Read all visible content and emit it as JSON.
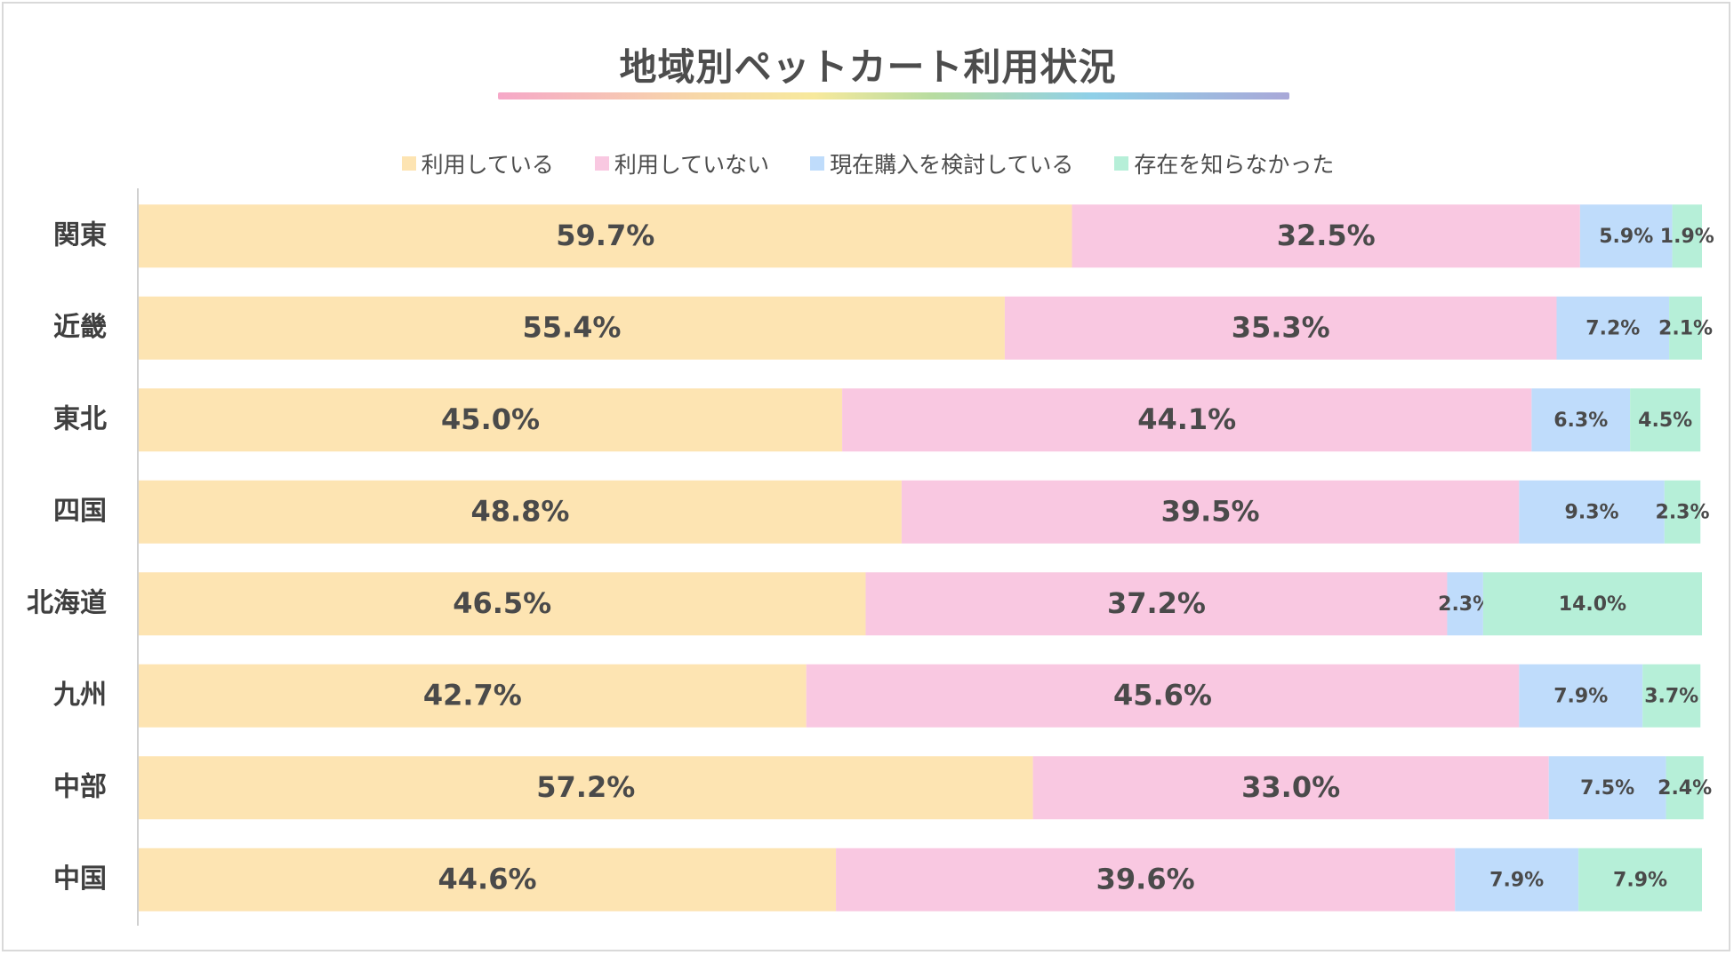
{
  "chart_data": {
    "type": "bar",
    "orientation": "horizontal",
    "stacked": true,
    "title": "地域別ペットカート利用状況",
    "categories": [
      "関東",
      "近畿",
      "東北",
      "四国",
      "北海道",
      "九州",
      "中部",
      "中国"
    ],
    "series": [
      {
        "name": "利用している",
        "color": "#fde4b2",
        "values": [
          59.7,
          55.4,
          45.0,
          48.8,
          46.5,
          42.7,
          57.2,
          44.6
        ]
      },
      {
        "name": "利用していない",
        "color": "#f9c8e1",
        "values": [
          32.5,
          35.3,
          44.1,
          39.5,
          37.2,
          45.6,
          33.0,
          39.6
        ]
      },
      {
        "name": "現在購入を検討している",
        "color": "#bfdcfb",
        "values": [
          5.9,
          7.2,
          6.3,
          9.3,
          2.3,
          7.9,
          7.5,
          7.9
        ]
      },
      {
        "name": "存在を知らなかった",
        "color": "#b6efd8",
        "values": [
          1.9,
          2.1,
          4.5,
          2.3,
          14.0,
          3.7,
          2.4,
          7.9
        ]
      }
    ],
    "value_format": "0.0%",
    "xlim": [
      0,
      100
    ],
    "legend_position": "top",
    "grid": false
  }
}
